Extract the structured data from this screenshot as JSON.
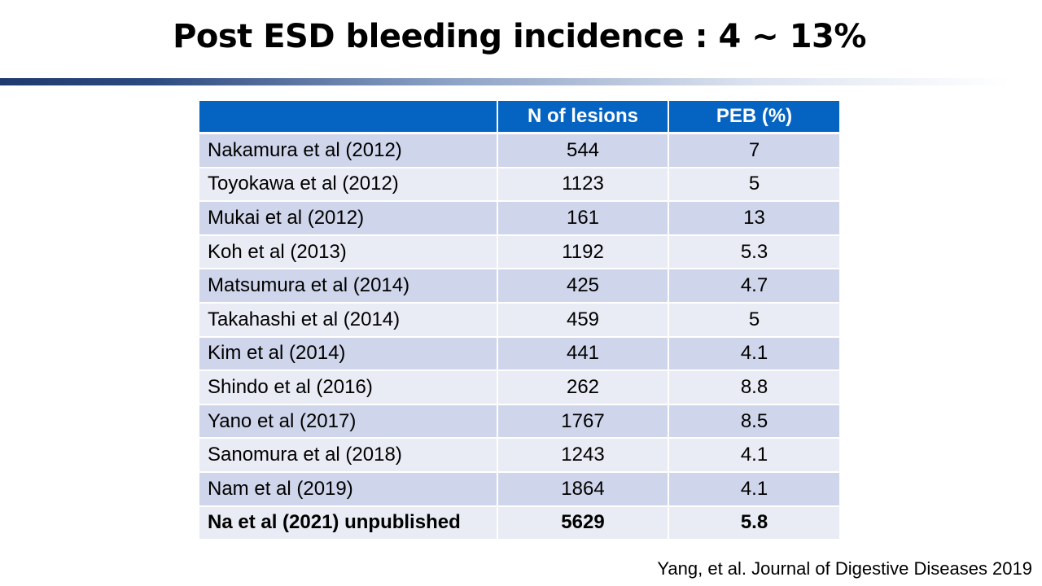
{
  "slide": {
    "title": "Post ESD bleeding incidence : 4 ~ 13%",
    "citation": "Yang, et al. Journal of Digestive Diseases 2019"
  },
  "table": {
    "headers": [
      "",
      "N of lesions",
      "PEB (%)"
    ],
    "rows": [
      {
        "study": "Nakamura et al (2012)",
        "n": "544",
        "peb": "7"
      },
      {
        "study": "Toyokawa et al (2012)",
        "n": "1123",
        "peb": "5"
      },
      {
        "study": "Mukai et al (2012)",
        "n": "161",
        "peb": "13"
      },
      {
        "study": "Koh et al (2013)",
        "n": "1192",
        "peb": "5.3"
      },
      {
        "study": "Matsumura et al (2014)",
        "n": "425",
        "peb": "4.7"
      },
      {
        "study": "Takahashi et al (2014)",
        "n": "459",
        "peb": "5"
      },
      {
        "study": "Kim et al (2014)",
        "n": "441",
        "peb": "4.1"
      },
      {
        "study": "Shindo et al (2016)",
        "n": "262",
        "peb": "8.8"
      },
      {
        "study": "Yano et al (2017)",
        "n": "1767",
        "peb": "8.5"
      },
      {
        "study": "Sanomura et al (2018)",
        "n": "1243",
        "peb": "4.1"
      },
      {
        "study": "Nam et al (2019)",
        "n": "1864",
        "peb": "4.1"
      },
      {
        "study": "Na et al (2021) unpublished",
        "n": "5629",
        "peb": "5.8"
      }
    ]
  },
  "colors": {
    "header_bg": "#0563c1",
    "row_odd": "#cfd5ea",
    "row_even": "#e9ebf5",
    "title_bar_dark": "#1f3a6e"
  }
}
